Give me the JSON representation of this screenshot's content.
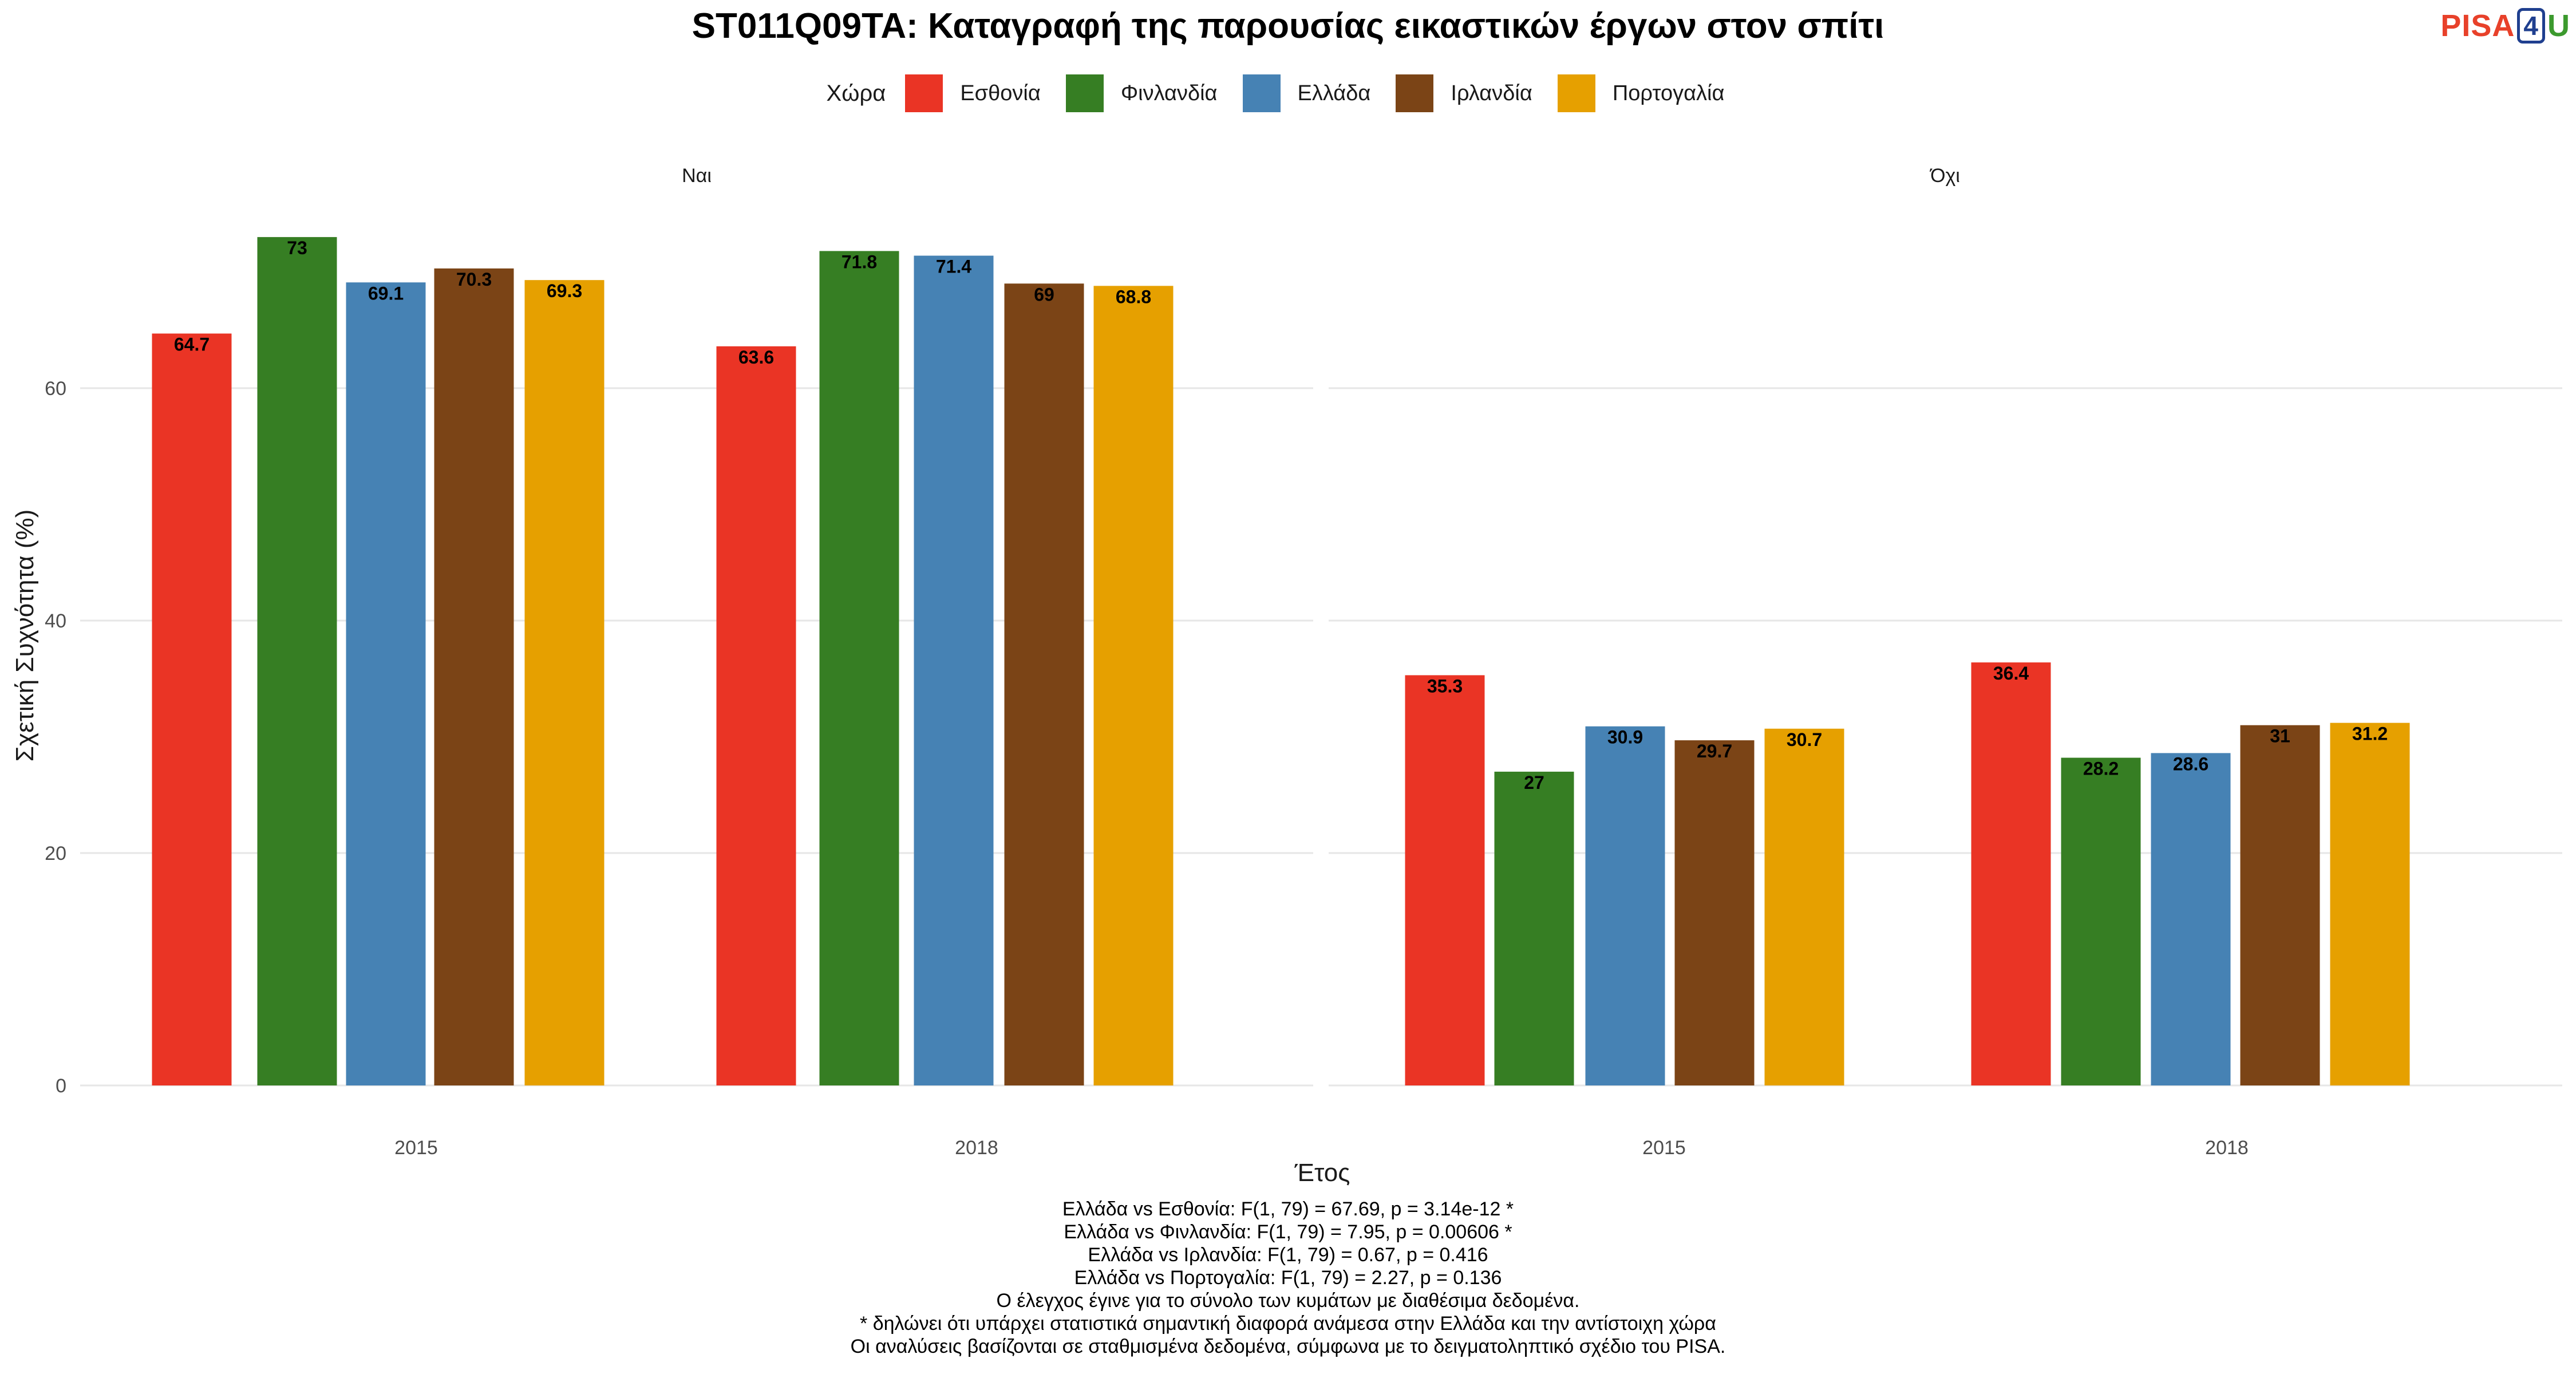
{
  "title": "ST011Q09TA: Καταγραφή της παρουσίας εικαστικών έργων στον σπίτι",
  "logo": {
    "text_a": "PISA",
    "text_b": "4",
    "text_c": "U"
  },
  "legend": {
    "title": "Χώρα",
    "items": [
      {
        "label": "Εσθονία",
        "color": "#EA3425"
      },
      {
        "label": "Φινλανδία",
        "color": "#367E23"
      },
      {
        "label": "Ελλάδα",
        "color": "#4682B4"
      },
      {
        "label": "Ιρλανδία",
        "color": "#7B4416"
      },
      {
        "label": "Πορτογαλία",
        "color": "#E6A000"
      }
    ]
  },
  "chart_data": {
    "type": "bar",
    "ylabel": "Σχετική Συχνότητα (%)",
    "xlabel": "Έτος",
    "ylim": [
      0,
      73.5
    ],
    "yticks": [
      0,
      20,
      40,
      60
    ],
    "grid": true,
    "legend_position": "top",
    "series_names": [
      "Εσθονία",
      "Φινλανδία",
      "Ελλάδα",
      "Ιρλανδία",
      "Πορτογαλία"
    ],
    "facets": [
      {
        "label": "Ναι",
        "categories": [
          "2015",
          "2018"
        ],
        "series": [
          {
            "name": "Εσθονία",
            "values": [
              64.7,
              63.6
            ]
          },
          {
            "name": "Φινλανδία",
            "values": [
              73,
              71.8
            ]
          },
          {
            "name": "Ελλάδα",
            "values": [
              69.1,
              71.4
            ]
          },
          {
            "name": "Ιρλανδία",
            "values": [
              70.3,
              69
            ]
          },
          {
            "name": "Πορτογαλία",
            "values": [
              69.3,
              68.8
            ]
          }
        ]
      },
      {
        "label": "Όχι",
        "categories": [
          "2015",
          "2018"
        ],
        "series": [
          {
            "name": "Εσθονία",
            "values": [
              35.3,
              36.4
            ]
          },
          {
            "name": "Φινλανδία",
            "values": [
              27,
              28.2
            ]
          },
          {
            "name": "Ελλάδα",
            "values": [
              30.9,
              28.6
            ]
          },
          {
            "name": "Ιρλανδία",
            "values": [
              29.7,
              31
            ]
          },
          {
            "name": "Πορτογαλία",
            "values": [
              30.7,
              31.2
            ]
          }
        ]
      }
    ]
  },
  "notes": [
    "Ελλάδα vs Εσθονία: F(1, 79) = 67.69, p = 3.14e-12 *",
    "Ελλάδα vs Φινλανδία: F(1, 79) = 7.95, p = 0.00606 *",
    "Ελλάδα vs Ιρλανδία: F(1, 79) = 0.67, p = 0.416",
    "Ελλάδα vs Πορτογαλία: F(1, 79) = 2.27, p = 0.136",
    "Ο έλεγχος έγινε για το σύνολο των κυμάτων με διαθέσιμα δεδομένα.",
    "* δηλώνει ότι υπάρχει στατιστικά σημαντική διαφορά ανάμεσα στην Ελλάδα και την αντίστοιχη χώρα",
    "Οι αναλύσεις βασίζονται σε σταθμισμένα δεδομένα, σύμφωνα με το δειγματοληπτικό σχέδιο του PISA."
  ]
}
